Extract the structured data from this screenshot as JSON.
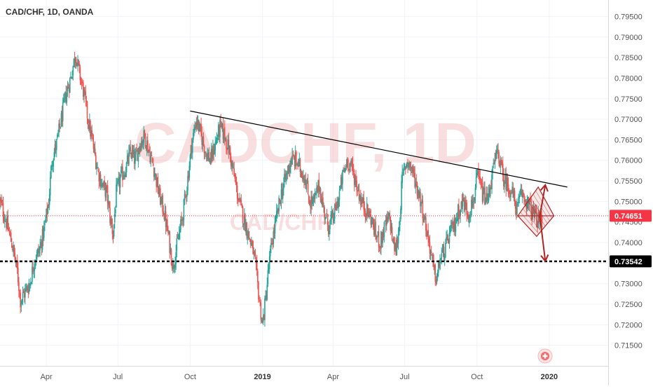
{
  "chart_data": {
    "type": "candlestick",
    "title": "CAD/CHF, 1D, OANDA",
    "watermark_main": "CADCHF, 1D",
    "watermark_sub": "CAD/CHF",
    "ylim": [
      0.71,
      0.799
    ],
    "y_ticks": [
      "0.79500",
      "0.79000",
      "0.78500",
      "0.78000",
      "0.77500",
      "0.77000",
      "0.76500",
      "0.76000",
      "0.75500",
      "0.75000",
      "0.74500",
      "0.74000",
      "0.73500",
      "0.73000",
      "0.72500",
      "0.72000",
      "0.71500"
    ],
    "y_tick_values": [
      0.795,
      0.79,
      0.785,
      0.78,
      0.775,
      0.77,
      0.765,
      0.76,
      0.755,
      0.75,
      0.745,
      0.74,
      0.735,
      0.73,
      0.725,
      0.72,
      0.715
    ],
    "x_ticks": [
      {
        "label": "Apr",
        "day": 59,
        "bold": false
      },
      {
        "label": "Jul",
        "day": 150,
        "bold": false
      },
      {
        "label": "Oct",
        "day": 242,
        "bold": false
      },
      {
        "label": "2019",
        "day": 334,
        "bold": true
      },
      {
        "label": "Apr",
        "day": 424,
        "bold": false
      },
      {
        "label": "Jul",
        "day": 515,
        "bold": false
      },
      {
        "label": "Oct",
        "day": 607,
        "bold": false
      },
      {
        "label": "2020",
        "day": 699,
        "bold": true
      }
    ],
    "day_range": [
      0,
      774
    ],
    "price_anchors": [
      [
        0,
        0.75
      ],
      [
        8,
        0.745
      ],
      [
        16,
        0.739
      ],
      [
        22,
        0.733
      ],
      [
        26,
        0.726
      ],
      [
        32,
        0.728
      ],
      [
        38,
        0.73
      ],
      [
        44,
        0.736
      ],
      [
        50,
        0.738
      ],
      [
        56,
        0.743
      ],
      [
        62,
        0.75
      ],
      [
        66,
        0.76
      ],
      [
        72,
        0.764
      ],
      [
        78,
        0.77
      ],
      [
        84,
        0.776
      ],
      [
        90,
        0.78
      ],
      [
        96,
        0.786
      ],
      [
        100,
        0.782
      ],
      [
        106,
        0.777
      ],
      [
        112,
        0.77
      ],
      [
        118,
        0.764
      ],
      [
        124,
        0.758
      ],
      [
        130,
        0.754
      ],
      [
        136,
        0.752
      ],
      [
        140,
        0.746
      ],
      [
        144,
        0.742
      ],
      [
        148,
        0.752
      ],
      [
        154,
        0.756
      ],
      [
        160,
        0.758
      ],
      [
        166,
        0.762
      ],
      [
        172,
        0.76
      ],
      [
        178,
        0.764
      ],
      [
        184,
        0.766
      ],
      [
        190,
        0.762
      ],
      [
        196,
        0.758
      ],
      [
        202,
        0.752
      ],
      [
        208,
        0.748
      ],
      [
        214,
        0.742
      ],
      [
        220,
        0.734
      ],
      [
        226,
        0.74
      ],
      [
        232,
        0.746
      ],
      [
        238,
        0.754
      ],
      [
        244,
        0.764
      ],
      [
        250,
        0.77
      ],
      [
        256,
        0.766
      ],
      [
        262,
        0.762
      ],
      [
        268,
        0.76
      ],
      [
        274,
        0.764
      ],
      [
        280,
        0.768
      ],
      [
        286,
        0.766
      ],
      [
        292,
        0.762
      ],
      [
        298,
        0.756
      ],
      [
        304,
        0.75
      ],
      [
        310,
        0.746
      ],
      [
        316,
        0.742
      ],
      [
        322,
        0.738
      ],
      [
        326,
        0.733
      ],
      [
        330,
        0.726
      ],
      [
        334,
        0.72
      ],
      [
        338,
        0.726
      ],
      [
        342,
        0.734
      ],
      [
        346,
        0.74
      ],
      [
        352,
        0.746
      ],
      [
        358,
        0.752
      ],
      [
        364,
        0.756
      ],
      [
        370,
        0.76
      ],
      [
        376,
        0.76
      ],
      [
        382,
        0.758
      ],
      [
        388,
        0.756
      ],
      [
        394,
        0.75
      ],
      [
        400,
        0.75
      ],
      [
        406,
        0.754
      ],
      [
        412,
        0.748
      ],
      [
        418,
        0.744
      ],
      [
        424,
        0.746
      ],
      [
        430,
        0.75
      ],
      [
        436,
        0.756
      ],
      [
        442,
        0.76
      ],
      [
        448,
        0.758
      ],
      [
        454,
        0.754
      ],
      [
        460,
        0.75
      ],
      [
        466,
        0.748
      ],
      [
        472,
        0.746
      ],
      [
        478,
        0.742
      ],
      [
        484,
        0.74
      ],
      [
        490,
        0.744
      ],
      [
        496,
        0.746
      ],
      [
        500,
        0.74
      ],
      [
        504,
        0.738
      ],
      [
        508,
        0.744
      ],
      [
        512,
        0.756
      ],
      [
        518,
        0.76
      ],
      [
        524,
        0.758
      ],
      [
        530,
        0.754
      ],
      [
        536,
        0.75
      ],
      [
        542,
        0.744
      ],
      [
        548,
        0.738
      ],
      [
        552,
        0.733
      ],
      [
        556,
        0.731
      ],
      [
        560,
        0.736
      ],
      [
        566,
        0.738
      ],
      [
        572,
        0.742
      ],
      [
        578,
        0.744
      ],
      [
        584,
        0.748
      ],
      [
        590,
        0.75
      ],
      [
        596,
        0.747
      ],
      [
        602,
        0.75
      ],
      [
        608,
        0.756
      ],
      [
        614,
        0.752
      ],
      [
        620,
        0.75
      ],
      [
        626,
        0.756
      ],
      [
        630,
        0.76
      ],
      [
        634,
        0.762
      ],
      [
        640,
        0.756
      ],
      [
        646,
        0.754
      ],
      [
        652,
        0.752
      ],
      [
        658,
        0.748
      ],
      [
        664,
        0.752
      ],
      [
        670,
        0.75
      ],
      [
        676,
        0.748
      ],
      [
        682,
        0.746
      ],
      [
        686,
        0.745
      ],
      [
        690,
        0.7465
      ]
    ],
    "current_price": "0.74651",
    "support_level": "0.73542",
    "support_value": 0.73542,
    "current_value": 0.74651,
    "trendline": {
      "from": [
        242,
        0.772
      ],
      "to": [
        722,
        0.7535
      ]
    },
    "pattern": {
      "left": [
        659,
        0.7465
      ],
      "top": [
        685,
        0.7535
      ],
      "right": [
        705,
        0.7465
      ],
      "bottom": [
        683,
        0.7415
      ]
    },
    "arrows": [
      {
        "from": [
          687,
          0.7465
        ],
        "to": [
          694,
          0.754
        ]
      },
      {
        "from": [
          687,
          0.7465
        ],
        "to": [
          694,
          0.7355
        ]
      }
    ],
    "colors": {
      "up": "#26a69a",
      "down": "#ef5350",
      "grid": "#f0f3fa",
      "axis": "#d6dcde",
      "support": "#000000",
      "current": "#f23645",
      "pattern": "#b22222",
      "trendline": "#000000"
    }
  }
}
